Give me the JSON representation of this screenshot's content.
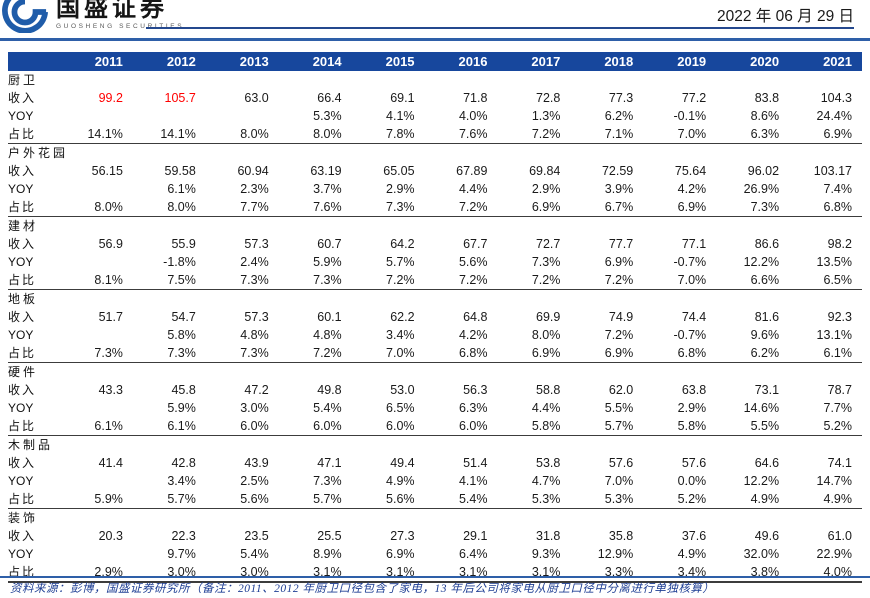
{
  "header": {
    "logo_cn": "国盛证券",
    "logo_en": "GUOSHENG SECURITIES",
    "date": "2022 年 06 月 29 日"
  },
  "footer": {
    "source_note": "资料来源：彭博，国盛证券研究所（备注：2011、2012 年厨卫口径包含了家电，13 年后公司将家电从厨卫口径中分离进行单独核算）"
  },
  "colors": {
    "table_header_bg": "#17479D",
    "accent_rule_blue": "#2E5FA8",
    "navy_rule": "#24488E",
    "highlight_red": "#FF0000",
    "footer_text": "#1F3F94"
  },
  "chart_data": {
    "type": "table",
    "years": [
      "2011",
      "2012",
      "2013",
      "2014",
      "2015",
      "2016",
      "2017",
      "2018",
      "2019",
      "2020",
      "2021"
    ],
    "groups": [
      {
        "name": "厨卫",
        "rows": [
          {
            "label": "收入",
            "values": [
              "99.2",
              "105.7",
              "63.0",
              "66.4",
              "69.1",
              "71.8",
              "72.8",
              "77.3",
              "77.2",
              "83.8",
              "104.3"
            ],
            "red": [
              0,
              1
            ]
          },
          {
            "label": "YOY",
            "values": [
              "",
              "",
              "",
              "5.3%",
              "4.1%",
              "4.0%",
              "1.3%",
              "6.2%",
              "-0.1%",
              "8.6%",
              "24.4%"
            ]
          },
          {
            "label": "占比",
            "values": [
              "14.1%",
              "14.1%",
              "8.0%",
              "8.0%",
              "7.8%",
              "7.6%",
              "7.2%",
              "7.1%",
              "7.0%",
              "6.3%",
              "6.9%"
            ]
          }
        ]
      },
      {
        "name": "户外花园",
        "rows": [
          {
            "label": "收入",
            "values": [
              "56.15",
              "59.58",
              "60.94",
              "63.19",
              "65.05",
              "67.89",
              "69.84",
              "72.59",
              "75.64",
              "96.02",
              "103.17"
            ]
          },
          {
            "label": "YOY",
            "values": [
              "",
              "6.1%",
              "2.3%",
              "3.7%",
              "2.9%",
              "4.4%",
              "2.9%",
              "3.9%",
              "4.2%",
              "26.9%",
              "7.4%"
            ]
          },
          {
            "label": "占比",
            "values": [
              "8.0%",
              "8.0%",
              "7.7%",
              "7.6%",
              "7.3%",
              "7.2%",
              "6.9%",
              "6.7%",
              "6.9%",
              "7.3%",
              "6.8%"
            ]
          }
        ]
      },
      {
        "name": "建材",
        "rows": [
          {
            "label": "收入",
            "values": [
              "56.9",
              "55.9",
              "57.3",
              "60.7",
              "64.2",
              "67.7",
              "72.7",
              "77.7",
              "77.1",
              "86.6",
              "98.2"
            ]
          },
          {
            "label": "YOY",
            "values": [
              "",
              "-1.8%",
              "2.4%",
              "5.9%",
              "5.7%",
              "5.6%",
              "7.3%",
              "6.9%",
              "-0.7%",
              "12.2%",
              "13.5%"
            ]
          },
          {
            "label": "占比",
            "values": [
              "8.1%",
              "7.5%",
              "7.3%",
              "7.3%",
              "7.2%",
              "7.2%",
              "7.2%",
              "7.2%",
              "7.0%",
              "6.6%",
              "6.5%"
            ]
          }
        ]
      },
      {
        "name": "地板",
        "rows": [
          {
            "label": "收入",
            "values": [
              "51.7",
              "54.7",
              "57.3",
              "60.1",
              "62.2",
              "64.8",
              "69.9",
              "74.9",
              "74.4",
              "81.6",
              "92.3"
            ]
          },
          {
            "label": "YOY",
            "values": [
              "",
              "5.8%",
              "4.8%",
              "4.8%",
              "3.4%",
              "4.2%",
              "8.0%",
              "7.2%",
              "-0.7%",
              "9.6%",
              "13.1%"
            ]
          },
          {
            "label": "占比",
            "values": [
              "7.3%",
              "7.3%",
              "7.3%",
              "7.2%",
              "7.0%",
              "6.8%",
              "6.9%",
              "6.9%",
              "6.8%",
              "6.2%",
              "6.1%"
            ]
          }
        ]
      },
      {
        "name": "硬件",
        "rows": [
          {
            "label": "收入",
            "values": [
              "43.3",
              "45.8",
              "47.2",
              "49.8",
              "53.0",
              "56.3",
              "58.8",
              "62.0",
              "63.8",
              "73.1",
              "78.7"
            ]
          },
          {
            "label": "YOY",
            "values": [
              "",
              "5.9%",
              "3.0%",
              "5.4%",
              "6.5%",
              "6.3%",
              "4.4%",
              "5.5%",
              "2.9%",
              "14.6%",
              "7.7%"
            ]
          },
          {
            "label": "占比",
            "values": [
              "6.1%",
              "6.1%",
              "6.0%",
              "6.0%",
              "6.0%",
              "6.0%",
              "5.8%",
              "5.7%",
              "5.8%",
              "5.5%",
              "5.2%"
            ]
          }
        ]
      },
      {
        "name": "木制品",
        "rows": [
          {
            "label": "收入",
            "values": [
              "41.4",
              "42.8",
              "43.9",
              "47.1",
              "49.4",
              "51.4",
              "53.8",
              "57.6",
              "57.6",
              "64.6",
              "74.1"
            ]
          },
          {
            "label": "YOY",
            "values": [
              "",
              "3.4%",
              "2.5%",
              "7.3%",
              "4.9%",
              "4.1%",
              "4.7%",
              "7.0%",
              "0.0%",
              "12.2%",
              "14.7%"
            ]
          },
          {
            "label": "占比",
            "values": [
              "5.9%",
              "5.7%",
              "5.6%",
              "5.7%",
              "5.6%",
              "5.4%",
              "5.3%",
              "5.3%",
              "5.2%",
              "4.9%",
              "4.9%"
            ]
          }
        ]
      },
      {
        "name": "装饰",
        "rows": [
          {
            "label": "收入",
            "values": [
              "20.3",
              "22.3",
              "23.5",
              "25.5",
              "27.3",
              "29.1",
              "31.8",
              "35.8",
              "37.6",
              "49.6",
              "61.0"
            ]
          },
          {
            "label": "YOY",
            "values": [
              "",
              "9.7%",
              "5.4%",
              "8.9%",
              "6.9%",
              "6.4%",
              "9.3%",
              "12.9%",
              "4.9%",
              "32.0%",
              "22.9%"
            ]
          },
          {
            "label": "占比",
            "values": [
              "2.9%",
              "3.0%",
              "3.0%",
              "3.1%",
              "3.1%",
              "3.1%",
              "3.1%",
              "3.3%",
              "3.4%",
              "3.8%",
              "4.0%"
            ]
          }
        ]
      }
    ]
  }
}
